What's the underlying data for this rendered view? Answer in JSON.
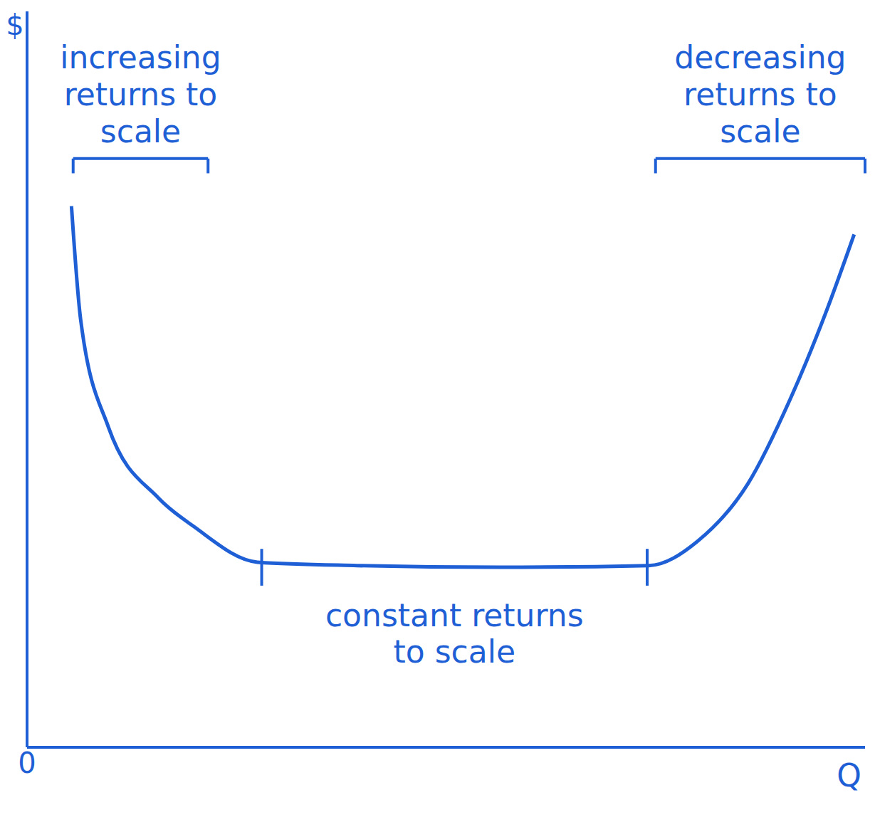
{
  "chart_data": {
    "type": "line",
    "x_label": "Q",
    "y_label": "$",
    "color": "#1f5fd6",
    "x": [
      5.3,
      6.4,
      9.7,
      15.7,
      19.9,
      27.5,
      39.4,
      56.4,
      74.2,
      80.1,
      86.0,
      91.1,
      95.3,
      98.7
    ],
    "values": [
      95.6,
      75.5,
      56.6,
      44.0,
      39.0,
      32.7,
      32.1,
      31.8,
      32.1,
      36.5,
      46.5,
      61.6,
      76.7,
      90.6
    ],
    "xlim": [
      0,
      100
    ],
    "ylim": [
      0,
      130
    ],
    "xticks": [
      0
    ],
    "yticks": [],
    "tick_labels": "x",
    "grid": false,
    "annotations": [
      {
        "text": "increasing returns to scale",
        "x": [
          5.5,
          21.6
        ]
      },
      {
        "text": "constant returns to scale",
        "x": [
          28,
          74
        ]
      },
      {
        "text": "decreasing returns to scale",
        "x": [
          75,
          100
        ]
      }
    ]
  }
}
